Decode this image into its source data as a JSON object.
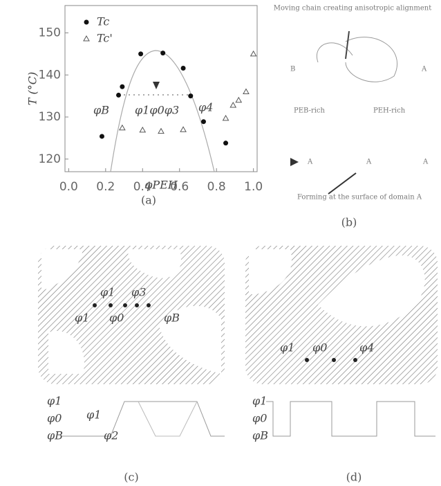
{
  "chart_data": {
    "type": "scatter",
    "x_label": "φPEH",
    "y_label": "T (°C)",
    "panel_label": "(a)",
    "xlim": [
      -0.02,
      1.02
    ],
    "ylim": [
      117,
      156.5
    ],
    "xticks": [
      {
        "value": 0,
        "label": "0.0"
      },
      {
        "value": 0.2,
        "label": "0.2"
      },
      {
        "value": 0.4,
        "label": "0.4"
      },
      {
        "value": 0.6,
        "label": "0.6"
      },
      {
        "value": 0.8,
        "label": "0.8"
      },
      {
        "value": 1,
        "label": "1.0"
      }
    ],
    "yticks": [
      120,
      130,
      140,
      150
    ],
    "series": [
      {
        "name": "Tc",
        "marker": "circle",
        "color": "#111111",
        "x": [
          0.18,
          0.27,
          0.29,
          0.39,
          0.51,
          0.62,
          0.66,
          0.73,
          0.85
        ],
        "values": [
          125.4,
          135.2,
          137.2,
          145,
          145.2,
          141.6,
          135,
          128.9,
          123.8
        ]
      },
      {
        "name": "Tc'",
        "marker": "triangle",
        "color": "#555555",
        "x": [
          0.29,
          0.4,
          0.5,
          0.62,
          0.85,
          0.89,
          0.92,
          0.96,
          1.0
        ],
        "values": [
          127.4,
          126.9,
          126.6,
          127,
          129.7,
          132.8,
          134,
          136,
          145
        ]
      }
    ],
    "annotations": [
      "φB",
      "φ1φ0φ3",
      "φ4"
    ]
  },
  "panel_b": {
    "caption": "Moving chain creating anisotropic alignment",
    "left": "B",
    "right": "A",
    "left_phase": "PEB-rich",
    "right_phase": "PEH-rich",
    "bottom_labels": [
      "A",
      "A",
      "A"
    ],
    "note": "Forming at the surface of domain A",
    "label": "(b)"
  },
  "panel_c": {
    "labels": [
      "φ1",
      "φ3",
      "φ0",
      "φB",
      "φ1"
    ],
    "profile_axis": [
      "φ1",
      "φ0",
      "φB"
    ],
    "profile_labels": [
      "φ1",
      "φ2"
    ],
    "label": "(c)"
  },
  "panel_d": {
    "labels": [
      "φ1",
      "φ0",
      "φ4"
    ],
    "profile_axis": [
      "φ1",
      "φ0",
      "φB"
    ],
    "label": "(d)"
  }
}
